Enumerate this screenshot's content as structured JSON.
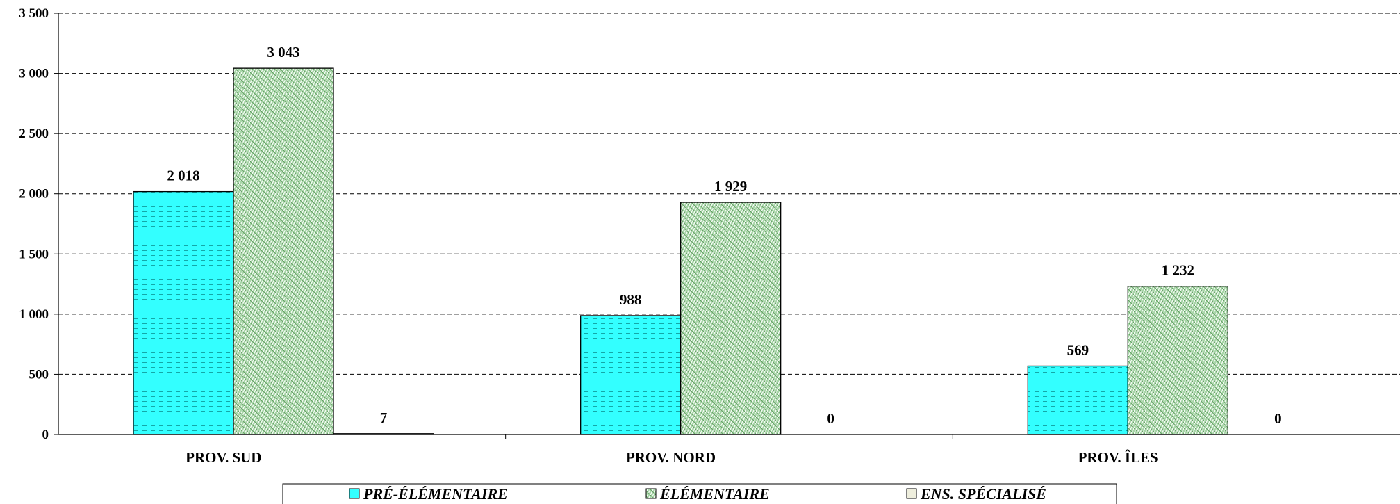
{
  "chart_data": {
    "type": "bar",
    "title": "",
    "xlabel": "",
    "ylabel": "",
    "categories": [
      "PROV. SUD",
      "PROV. NORD",
      "PROV. ÎLES"
    ],
    "series": [
      {
        "name": "PRÉ-ÉLÉMENTAIRE",
        "values": [
          2018,
          988,
          569
        ],
        "labels": [
          "2 018",
          "988",
          "569"
        ],
        "color": "#33FFFF",
        "pattern": "dash"
      },
      {
        "name": "ÉLÉMENTAIRE",
        "values": [
          3043,
          1929,
          1232
        ],
        "labels": [
          "3 043",
          "1 929",
          "1 232"
        ],
        "color": "#99CC99",
        "pattern": "weave"
      },
      {
        "name": "ENS. SPÉCIALISÉ",
        "values": [
          7,
          0,
          0
        ],
        "labels": [
          "7",
          "0",
          "0"
        ],
        "color": "#EEEEDD",
        "pattern": "none"
      }
    ],
    "ylim": [
      0,
      3500
    ],
    "yticks": [
      0,
      500,
      1000,
      1500,
      2000,
      2500,
      3000,
      3500
    ],
    "ytick_labels": [
      "0",
      "500",
      "1 000",
      "1 500",
      "2 000",
      "2 500",
      "3 000",
      "3 500"
    ],
    "grid": "horizontal dashed",
    "legend_position": "bottom"
  }
}
